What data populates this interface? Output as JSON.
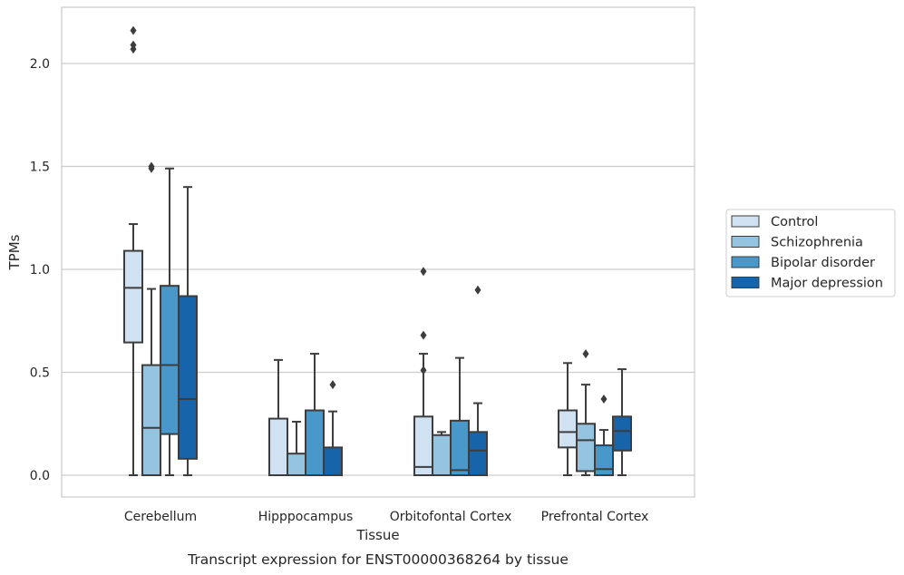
{
  "chart_data": {
    "type": "box",
    "caption": "Transcript expression for ENST00000368264 by tissue",
    "xlabel": "Tissue",
    "ylabel": "TPMs",
    "ylim": [
      -0.1,
      2.27
    ],
    "yticks": [
      0.0,
      0.5,
      1.0,
      1.5,
      2.0
    ],
    "ytick_labels": [
      "0.0",
      "0.5",
      "1.0",
      "1.5",
      "2.0"
    ],
    "grid": "horizontal",
    "legend_position": "right, outside plot",
    "categories": [
      "Cerebellum",
      "Hipppocampus",
      "Orbitofontal Cortex",
      "Prefrontal Cortex"
    ],
    "series": [
      {
        "name": "Control",
        "color": "#d0e1f2",
        "boxes": [
          {
            "whislo": 0.0,
            "q1": 0.645,
            "med": 0.91,
            "q3": 1.09,
            "whishi": 1.22,
            "fliers": [
              2.07,
              2.09,
              2.16
            ]
          },
          {
            "whislo": 0.0,
            "q1": 0.0,
            "med": 0.0,
            "q3": 0.275,
            "whishi": 0.56,
            "fliers": []
          },
          {
            "whislo": 0.0,
            "q1": 0.0,
            "med": 0.04,
            "q3": 0.285,
            "whishi": 0.59,
            "fliers": [
              0.51,
              0.68,
              0.99
            ]
          },
          {
            "whislo": 0.0,
            "q1": 0.135,
            "med": 0.21,
            "q3": 0.315,
            "whishi": 0.545,
            "fliers": []
          }
        ]
      },
      {
        "name": "Schizophrenia",
        "color": "#94c4df",
        "boxes": [
          {
            "whislo": 0.0,
            "q1": 0.0,
            "med": 0.23,
            "q3": 0.535,
            "whishi": 0.905,
            "fliers": [
              1.49,
              1.5
            ]
          },
          {
            "whislo": 0.0,
            "q1": 0.0,
            "med": 0.0,
            "q3": 0.105,
            "whishi": 0.26,
            "fliers": []
          },
          {
            "whislo": 0.0,
            "q1": 0.0,
            "med": 0.0,
            "q3": 0.195,
            "whishi": 0.21,
            "fliers": []
          },
          {
            "whislo": 0.0,
            "q1": 0.02,
            "med": 0.17,
            "q3": 0.25,
            "whishi": 0.44,
            "fliers": [
              0.59
            ]
          }
        ]
      },
      {
        "name": "Bipolar disorder",
        "color": "#4a98c9",
        "boxes": [
          {
            "whislo": 0.0,
            "q1": 0.2,
            "med": 0.535,
            "q3": 0.92,
            "whishi": 1.49,
            "fliers": []
          },
          {
            "whislo": 0.0,
            "q1": 0.0,
            "med": 0.0,
            "q3": 0.315,
            "whishi": 0.59,
            "fliers": []
          },
          {
            "whislo": 0.0,
            "q1": 0.0,
            "med": 0.025,
            "q3": 0.265,
            "whishi": 0.57,
            "fliers": []
          },
          {
            "whislo": 0.0,
            "q1": 0.0,
            "med": 0.03,
            "q3": 0.145,
            "whishi": 0.22,
            "fliers": [
              0.37
            ]
          }
        ]
      },
      {
        "name": "Major depression",
        "color": "#1764ab",
        "boxes": [
          {
            "whislo": 0.0,
            "q1": 0.08,
            "med": 0.37,
            "q3": 0.87,
            "whishi": 1.4,
            "fliers": []
          },
          {
            "whislo": 0.0,
            "q1": 0.0,
            "med": 0.0,
            "q3": 0.135,
            "whishi": 0.31,
            "fliers": [
              0.44
            ]
          },
          {
            "whislo": 0.0,
            "q1": 0.0,
            "med": 0.12,
            "q3": 0.21,
            "whishi": 0.35,
            "fliers": [
              0.9
            ]
          },
          {
            "whislo": 0.0,
            "q1": 0.12,
            "med": 0.215,
            "q3": 0.285,
            "whishi": 0.515,
            "fliers": []
          }
        ]
      }
    ]
  }
}
